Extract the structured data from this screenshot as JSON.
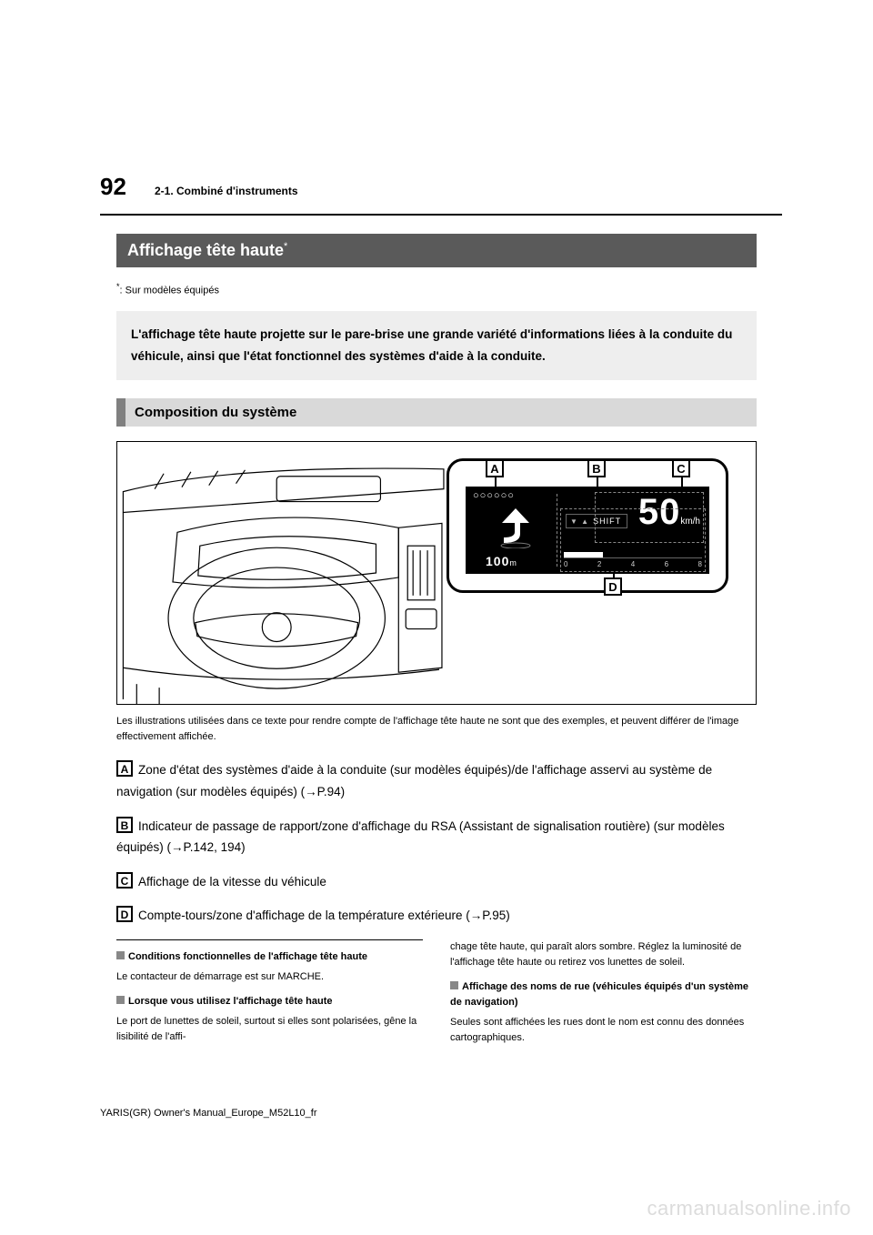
{
  "page_number": "92",
  "section_header": "2-1. Combiné d'instruments",
  "title": "Affichage tête haute",
  "title_superscript": "*",
  "footnote_marker": "*",
  "footnote_text": ":  Sur modèles équipés",
  "intro_text": "L'affichage tête haute projette sur le pare-brise une grande variété d'informations liées à la conduite du véhicule, ainsi que l'état fonctionnel des systèmes d'aide à la conduite.",
  "subheading": "Composition du système",
  "diagram": {
    "callouts": [
      "A",
      "B",
      "C",
      "D"
    ],
    "hud": {
      "icons_text": "○○○○○○",
      "distance_value": "100",
      "distance_unit": "m",
      "shift_label": "SHIFT",
      "shift_triangles": "▼ ▲",
      "speed_value": "50",
      "speed_unit": "km/h",
      "rpm_ticks": [
        "0",
        "2",
        "4",
        "6",
        "8"
      ],
      "rpm_bar_fill_pct": 28
    },
    "colors": {
      "hud_bg": "#000000",
      "hud_fg": "#ffffff",
      "dashed_border": "#888888",
      "frame": "#000000"
    }
  },
  "caption": "Les illustrations utilisées dans ce texte pour rendre compte de l'affichage tête haute ne sont que des exemples, et peuvent différer de l'image effectivement affichée.",
  "items": {
    "A": "Zone d'état des systèmes d'aide à la conduite (sur modèles équipés)/de l'affichage asservi au système de navigation (sur modèles équipés) (→P.94)",
    "B": "Indicateur de passage de rapport/zone d'affichage du RSA (Assistant de signalisation routière) (sur modèles équipés) (→P.142, 194)",
    "C": "Affichage de la vitesse du véhicule",
    "D": "Compte-tours/zone d'affichage de la température extérieure (→P.95)"
  },
  "notes": {
    "left": [
      {
        "head": "Conditions fonctionnelles de l'affichage tête haute",
        "body": "Le contacteur de démarrage est sur MARCHE."
      },
      {
        "head": "Lorsque vous utilisez l'affichage tête haute",
        "body": "Le port de lunettes de soleil, surtout si elles sont polarisées, gêne la lisibilité de l'affi-"
      }
    ],
    "right": [
      {
        "head": null,
        "body": "chage tête haute, qui paraît alors sombre. Réglez la luminosité de l'affichage tête haute ou retirez vos lunettes de soleil."
      },
      {
        "head": "Affichage des noms de rue (véhicules équipés d'un système de navigation)",
        "body": "Seules sont affichées les rues dont le nom est connu des données cartographiques."
      }
    ]
  },
  "footer": "YARIS(GR) Owner's Manual_Europe_M52L10_fr",
  "watermark": "carmanualsonline.info"
}
